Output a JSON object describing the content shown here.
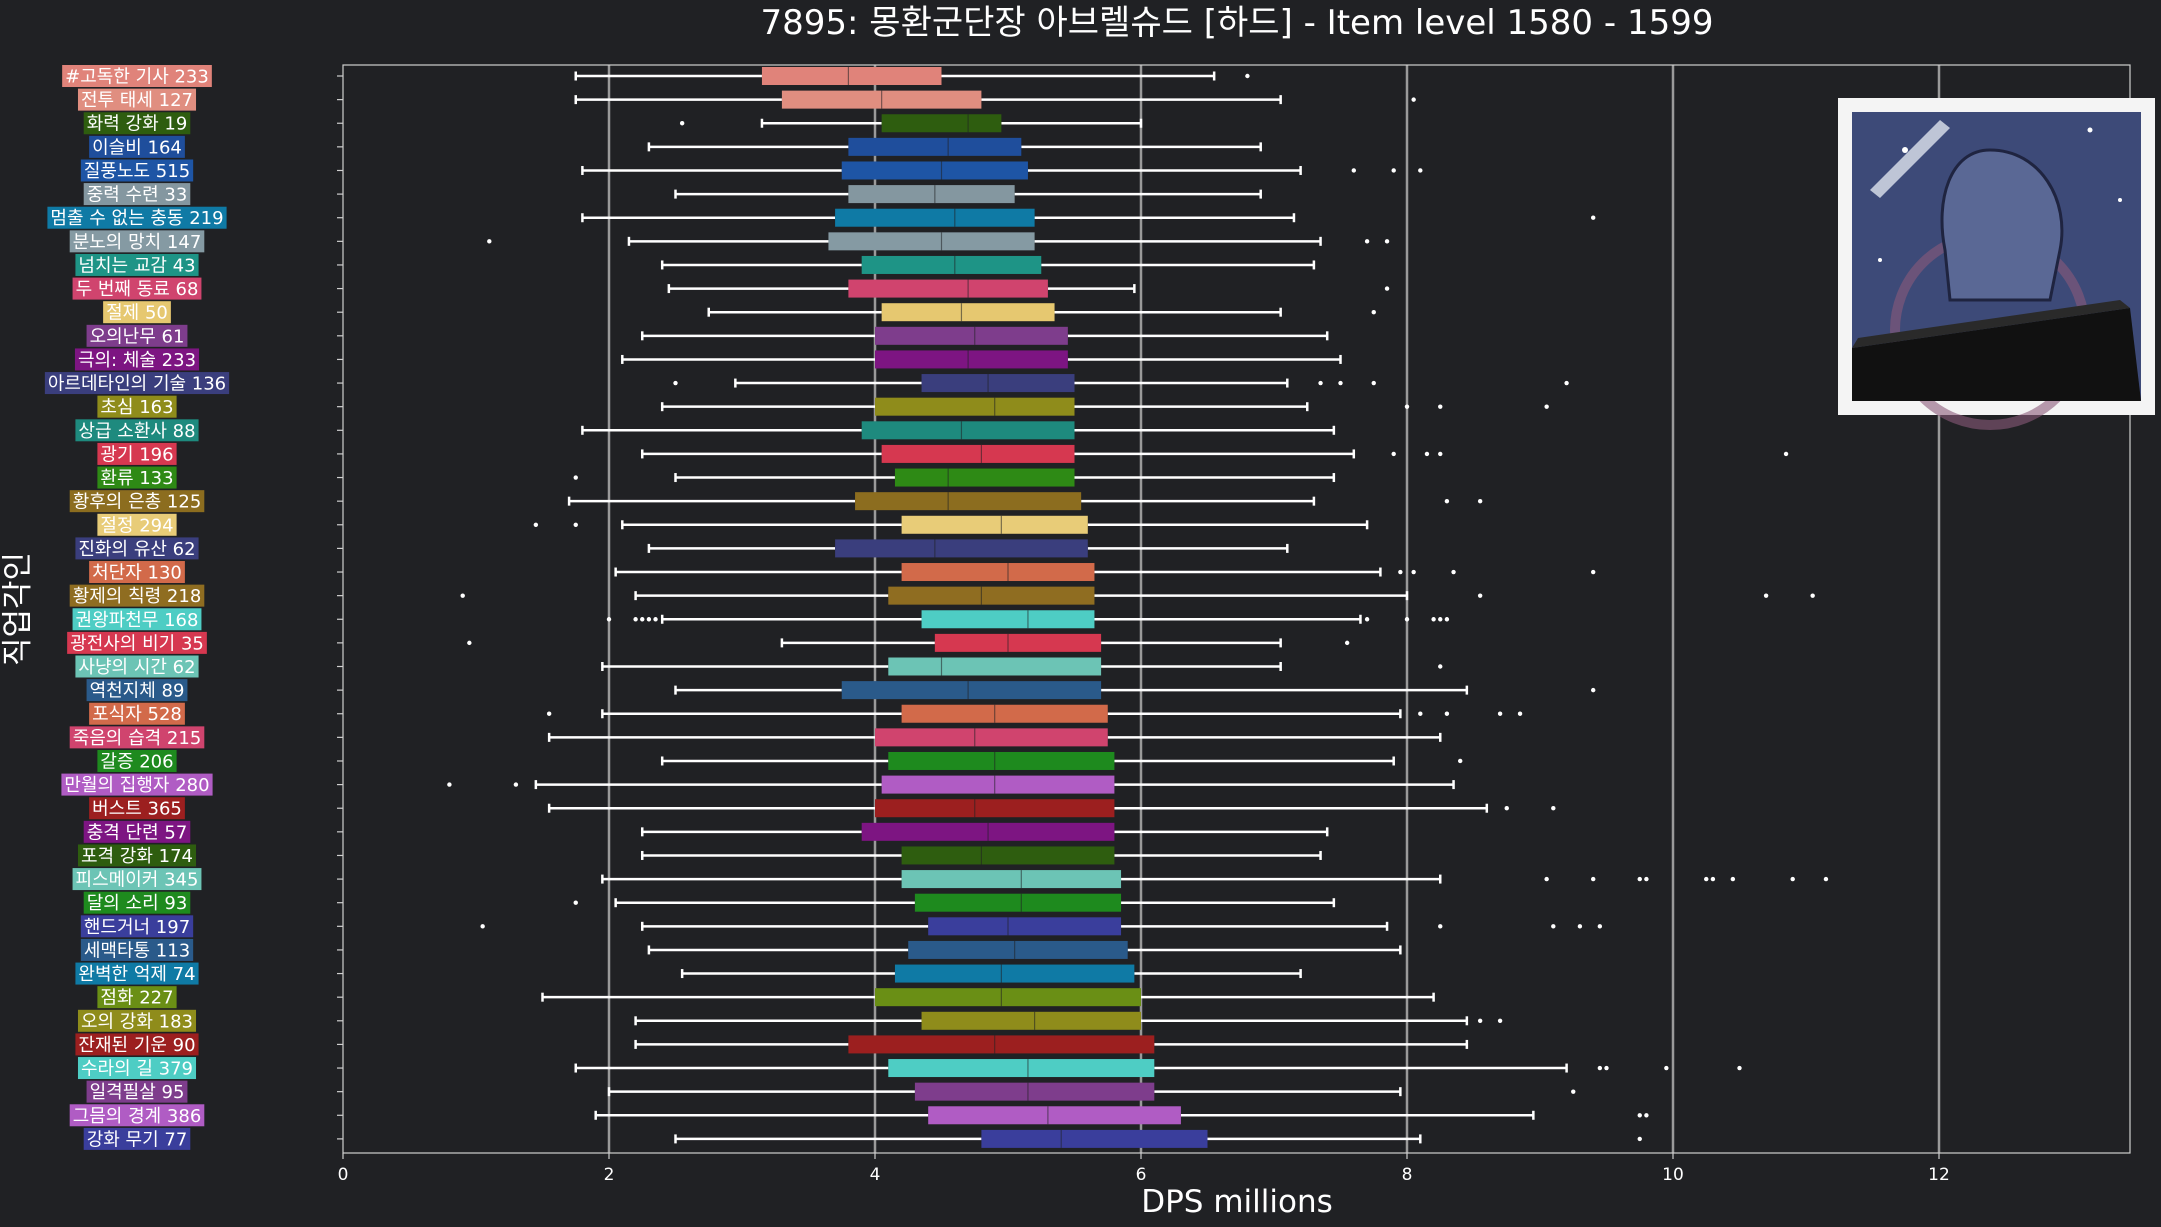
{
  "chart_data": {
    "type": "box",
    "orientation": "horizontal",
    "title": "7895: 몽환군단장 아브렐슈드 [하드] - Item level 1580 - 1599",
    "xlabel": "DPS millions",
    "ylabel": "직업각인",
    "xlim": [
      0,
      13.4
    ],
    "xticks": [
      0,
      2,
      4,
      6,
      8,
      10,
      12
    ],
    "grid": "vertical",
    "inset_image": "class-emblem-artwork",
    "series": [
      {
        "label": "#고독한 기사 233",
        "color": "#e0837a",
        "whisker_low": 1.75,
        "q1": 3.15,
        "median": 3.8,
        "q3": 4.5,
        "whisker_high": 6.55,
        "outliers": [
          6.8
        ]
      },
      {
        "label": "전투 태세 127",
        "color": "#e08e80",
        "whisker_low": 1.75,
        "q1": 3.3,
        "median": 4.05,
        "q3": 4.8,
        "whisker_high": 7.05,
        "outliers": [
          8.05
        ]
      },
      {
        "label": "화력 강화 19",
        "color": "#2e5d0f",
        "whisker_low": 3.15,
        "q1": 4.05,
        "median": 4.7,
        "q3": 4.95,
        "whisker_high": 6.0,
        "outliers": [
          2.55
        ]
      },
      {
        "label": "이슬비 164",
        "color": "#1f4e9c",
        "whisker_low": 2.3,
        "q1": 3.8,
        "median": 4.55,
        "q3": 5.1,
        "whisker_high": 6.9,
        "outliers": []
      },
      {
        "label": "질풍노도 515",
        "color": "#1e55a5",
        "whisker_low": 1.8,
        "q1": 3.75,
        "median": 4.5,
        "q3": 5.15,
        "whisker_high": 7.2,
        "outliers": [
          7.6,
          7.9,
          8.1
        ]
      },
      {
        "label": "중력 수련 33",
        "color": "#8497a0",
        "whisker_low": 2.5,
        "q1": 3.8,
        "median": 4.45,
        "q3": 5.05,
        "whisker_high": 6.9,
        "outliers": []
      },
      {
        "label": "멈출 수 없는 충동 219",
        "color": "#0f7aa5",
        "whisker_low": 1.8,
        "q1": 3.7,
        "median": 4.6,
        "q3": 5.2,
        "whisker_high": 7.15,
        "outliers": [
          9.4
        ]
      },
      {
        "label": "분노의 망치 147",
        "color": "#859aa3",
        "whisker_low": 2.15,
        "q1": 3.65,
        "median": 4.5,
        "q3": 5.2,
        "whisker_high": 7.35,
        "outliers": [
          1.1,
          7.7,
          7.85
        ]
      },
      {
        "label": "넘치는 교감 43",
        "color": "#1e9486",
        "whisker_low": 2.4,
        "q1": 3.9,
        "median": 4.6,
        "q3": 5.25,
        "whisker_high": 7.3,
        "outliers": []
      },
      {
        "label": "두 번째 동료 68",
        "color": "#d0446e",
        "whisker_low": 2.45,
        "q1": 3.8,
        "median": 4.7,
        "q3": 5.3,
        "whisker_high": 5.95,
        "outliers": [
          7.85
        ]
      },
      {
        "label": "절제 50",
        "color": "#e6c870",
        "whisker_low": 2.75,
        "q1": 4.05,
        "median": 4.65,
        "q3": 5.35,
        "whisker_high": 7.05,
        "outliers": [
          7.75
        ]
      },
      {
        "label": "오의난무 61",
        "color": "#7e3d8c",
        "whisker_low": 2.25,
        "q1": 4.0,
        "median": 4.75,
        "q3": 5.45,
        "whisker_high": 7.4,
        "outliers": []
      },
      {
        "label": "극의: 체술 233",
        "color": "#7d1582",
        "whisker_low": 2.1,
        "q1": 4.0,
        "median": 4.7,
        "q3": 5.45,
        "whisker_high": 7.5,
        "outliers": []
      },
      {
        "label": "아르데타인의 기술 136",
        "color": "#3a3e7d",
        "whisker_low": 2.95,
        "q1": 4.35,
        "median": 4.85,
        "q3": 5.5,
        "whisker_high": 7.1,
        "outliers": [
          2.5,
          7.35,
          7.5,
          7.75,
          9.2
        ]
      },
      {
        "label": "초심 163",
        "color": "#8f8c1b",
        "whisker_low": 2.4,
        "q1": 4.0,
        "median": 4.9,
        "q3": 5.5,
        "whisker_high": 7.25,
        "outliers": [
          8.0,
          8.25,
          9.05
        ]
      },
      {
        "label": "상급 소환사 88",
        "color": "#1e8a7e",
        "whisker_low": 1.8,
        "q1": 3.9,
        "median": 4.65,
        "q3": 5.5,
        "whisker_high": 7.45,
        "outliers": []
      },
      {
        "label": "광기 196",
        "color": "#d63850",
        "whisker_low": 2.25,
        "q1": 4.05,
        "median": 4.8,
        "q3": 5.5,
        "whisker_high": 7.6,
        "outliers": [
          7.9,
          8.15,
          8.25,
          10.85
        ]
      },
      {
        "label": "환류 133",
        "color": "#2e8a15",
        "whisker_low": 2.5,
        "q1": 4.15,
        "median": 4.55,
        "q3": 5.5,
        "whisker_high": 7.45,
        "outliers": [
          1.75
        ]
      },
      {
        "label": "황후의 은총 125",
        "color": "#8c6d1f",
        "whisker_low": 1.7,
        "q1": 3.85,
        "median": 4.55,
        "q3": 5.55,
        "whisker_high": 7.3,
        "outliers": [
          8.3,
          8.55
        ]
      },
      {
        "label": "절정 294",
        "color": "#e8cc78",
        "whisker_low": 2.1,
        "q1": 4.2,
        "median": 4.95,
        "q3": 5.6,
        "whisker_high": 7.7,
        "outliers": [
          1.45,
          1.75
        ]
      },
      {
        "label": "진화의 유산 62",
        "color": "#3a3e7d",
        "whisker_low": 2.3,
        "q1": 3.7,
        "median": 4.45,
        "q3": 5.6,
        "whisker_high": 7.1,
        "outliers": []
      },
      {
        "label": "처단자 130",
        "color": "#d26a4a",
        "whisker_low": 2.05,
        "q1": 4.2,
        "median": 5.0,
        "q3": 5.65,
        "whisker_high": 7.8,
        "outliers": [
          7.95,
          8.05,
          8.35,
          9.4
        ]
      },
      {
        "label": "황제의 칙령 218",
        "color": "#8f6d21",
        "whisker_low": 2.2,
        "q1": 4.1,
        "median": 4.8,
        "q3": 5.65,
        "whisker_high": 8.0,
        "outliers": [
          0.9,
          8.55,
          10.7,
          11.05
        ]
      },
      {
        "label": "권왕파천무 168",
        "color": "#4ecdc4",
        "whisker_low": 2.4,
        "q1": 4.35,
        "median": 5.15,
        "q3": 5.65,
        "whisker_high": 7.65,
        "outliers": [
          2.0,
          2.2,
          2.25,
          2.3,
          2.35,
          7.7,
          8.0,
          8.2,
          8.25,
          8.3
        ]
      },
      {
        "label": "광전사의 비기 35",
        "color": "#d63850",
        "whisker_low": 3.3,
        "q1": 4.45,
        "median": 5.0,
        "q3": 5.7,
        "whisker_high": 7.05,
        "outliers": [
          0.95,
          7.55
        ]
      },
      {
        "label": "사냥의 시간 62",
        "color": "#6cc4b5",
        "whisker_low": 1.95,
        "q1": 4.1,
        "median": 4.5,
        "q3": 5.7,
        "whisker_high": 7.05,
        "outliers": [
          8.25
        ]
      },
      {
        "label": "역천지체 89",
        "color": "#2a5a8a",
        "whisker_low": 2.5,
        "q1": 3.75,
        "median": 4.7,
        "q3": 5.7,
        "whisker_high": 8.45,
        "outliers": [
          9.4
        ]
      },
      {
        "label": "포식자 528",
        "color": "#d26a4a",
        "whisker_low": 1.95,
        "q1": 4.2,
        "median": 4.9,
        "q3": 5.75,
        "whisker_high": 7.95,
        "outliers": [
          1.55,
          8.1,
          8.3,
          8.7,
          8.85
        ]
      },
      {
        "label": "죽음의 습격 215",
        "color": "#d0446e",
        "whisker_low": 1.55,
        "q1": 4.0,
        "median": 4.75,
        "q3": 5.75,
        "whisker_high": 8.25,
        "outliers": []
      },
      {
        "label": "갈증 206",
        "color": "#1e8a1e",
        "whisker_low": 2.4,
        "q1": 4.1,
        "median": 4.9,
        "q3": 5.8,
        "whisker_high": 7.9,
        "outliers": [
          8.4
        ]
      },
      {
        "label": "만월의 집행자 280",
        "color": "#b05cc4",
        "whisker_low": 1.45,
        "q1": 4.05,
        "median": 4.9,
        "q3": 5.8,
        "whisker_high": 8.35,
        "outliers": [
          0.8,
          1.3
        ]
      },
      {
        "label": "버스트 365",
        "color": "#9c1f1f",
        "whisker_low": 1.55,
        "q1": 4.0,
        "median": 4.75,
        "q3": 5.8,
        "whisker_high": 8.6,
        "outliers": [
          8.75,
          9.1
        ]
      },
      {
        "label": "충격 단련 57",
        "color": "#7d1582",
        "whisker_low": 2.25,
        "q1": 3.9,
        "median": 4.85,
        "q3": 5.8,
        "whisker_high": 7.4,
        "outliers": []
      },
      {
        "label": "포격 강화 174",
        "color": "#2e5d0f",
        "whisker_low": 2.25,
        "q1": 4.2,
        "median": 4.8,
        "q3": 5.8,
        "whisker_high": 7.35,
        "outliers": []
      },
      {
        "label": "피스메이커 345",
        "color": "#6cc4b5",
        "whisker_low": 1.95,
        "q1": 4.2,
        "median": 5.1,
        "q3": 5.85,
        "whisker_high": 8.25,
        "outliers": [
          9.05,
          9.4,
          9.75,
          9.8,
          10.25,
          10.3,
          10.45,
          10.9,
          11.15
        ]
      },
      {
        "label": "달의 소리 93",
        "color": "#1e8a1e",
        "whisker_low": 2.05,
        "q1": 4.3,
        "median": 5.1,
        "q3": 5.85,
        "whisker_high": 7.45,
        "outliers": [
          1.75
        ]
      },
      {
        "label": "핸드거너 197",
        "color": "#3a3e9c",
        "whisker_low": 2.25,
        "q1": 4.4,
        "median": 5.0,
        "q3": 5.85,
        "whisker_high": 7.85,
        "outliers": [
          1.05,
          8.25,
          9.1,
          9.3,
          9.45
        ]
      },
      {
        "label": "세맥타통 113",
        "color": "#2a5a8a",
        "whisker_low": 2.3,
        "q1": 4.25,
        "median": 5.05,
        "q3": 5.9,
        "whisker_high": 7.95,
        "outliers": []
      },
      {
        "label": "완벽한 억제 74",
        "color": "#0f7aa5",
        "whisker_low": 2.55,
        "q1": 4.15,
        "median": 4.95,
        "q3": 5.95,
        "whisker_high": 7.2,
        "outliers": []
      },
      {
        "label": "점화 227",
        "color": "#6a8f15",
        "whisker_low": 1.5,
        "q1": 4.0,
        "median": 4.95,
        "q3": 6.0,
        "whisker_high": 8.2,
        "outliers": []
      },
      {
        "label": "오의 강화 183",
        "color": "#8f8c1b",
        "whisker_low": 2.2,
        "q1": 4.35,
        "median": 5.2,
        "q3": 6.0,
        "whisker_high": 8.45,
        "outliers": [
          8.55,
          8.7
        ]
      },
      {
        "label": "잔재된 기운 90",
        "color": "#9c1f1f",
        "whisker_low": 2.2,
        "q1": 3.8,
        "median": 4.9,
        "q3": 6.1,
        "whisker_high": 8.45,
        "outliers": []
      },
      {
        "label": "수라의 길 379",
        "color": "#4ecdc4",
        "whisker_low": 1.75,
        "q1": 4.1,
        "median": 5.15,
        "q3": 6.1,
        "whisker_high": 9.2,
        "outliers": [
          9.45,
          9.5,
          9.95,
          10.5
        ]
      },
      {
        "label": "일격필살 95",
        "color": "#7e3d8c",
        "whisker_low": 2.0,
        "q1": 4.3,
        "median": 5.15,
        "q3": 6.1,
        "whisker_high": 7.95,
        "outliers": [
          9.25
        ]
      },
      {
        "label": "그믐의 경계 386",
        "color": "#b05cc4",
        "whisker_low": 1.9,
        "q1": 4.4,
        "median": 5.3,
        "q3": 6.3,
        "whisker_high": 8.95,
        "outliers": [
          9.75,
          9.8
        ]
      },
      {
        "label": "강화 무기 77",
        "color": "#3a3e9c",
        "whisker_low": 2.5,
        "q1": 4.8,
        "median": 5.4,
        "q3": 6.5,
        "whisker_high": 8.1,
        "outliers": [
          9.75
        ]
      }
    ]
  }
}
